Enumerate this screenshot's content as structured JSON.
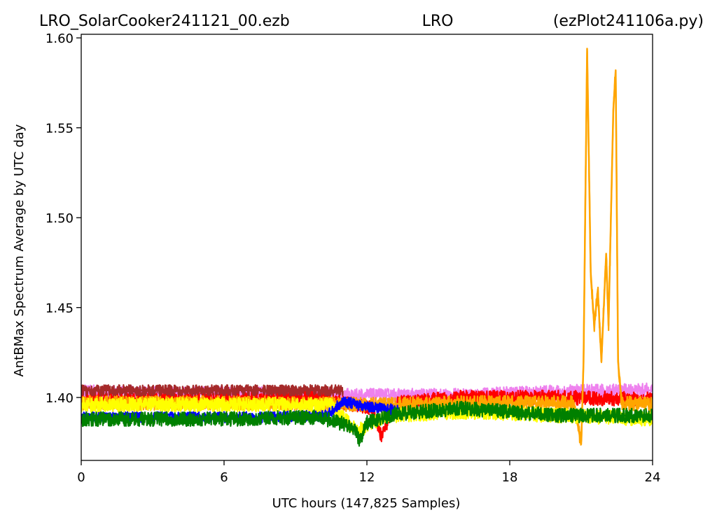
{
  "chart_data": {
    "type": "line",
    "title_left": "LRO_SolarCooker241121_00.ezb",
    "title_center": "LRO",
    "title_right": "(ezPlot241106a.py)",
    "xlabel": "UTC hours  (147,825 Samples)",
    "ylabel": "AntBMax Spectrum Average by UTC day",
    "xlim": [
      0,
      24
    ],
    "ylim": [
      1.365,
      1.602
    ],
    "x_ticks": [
      0,
      6,
      12,
      18,
      24
    ],
    "x_tick_labels": [
      "0",
      "6",
      "12",
      "18",
      "24"
    ],
    "y_ticks": [
      1.4,
      1.45,
      1.5,
      1.55,
      1.6
    ],
    "y_tick_labels": [
      "1.40",
      "1.45",
      "1.50",
      "1.55",
      "1.60"
    ],
    "grid": false,
    "legend": "none",
    "series": [
      {
        "color": "#ee82ee",
        "points": [
          [
            0,
            1.403
          ],
          [
            4,
            1.402
          ],
          [
            8,
            1.402
          ],
          [
            12,
            1.401
          ],
          [
            16,
            1.401
          ],
          [
            20,
            1.403
          ],
          [
            24,
            1.404
          ]
        ],
        "noise": 0.004
      },
      {
        "color": "#ff0000",
        "points": [
          [
            0,
            1.399
          ],
          [
            6,
            1.399
          ],
          [
            10,
            1.4
          ],
          [
            12.2,
            1.394
          ],
          [
            12.6,
            1.379
          ],
          [
            13.3,
            1.397
          ],
          [
            16,
            1.4
          ],
          [
            20,
            1.4
          ],
          [
            24,
            1.399
          ]
        ],
        "noise": 0.004
      },
      {
        "color": "#ffa500",
        "points": [
          [
            0,
            1.397
          ],
          [
            6,
            1.397
          ],
          [
            12,
            1.396
          ],
          [
            16,
            1.397
          ],
          [
            20.7,
            1.397
          ],
          [
            21.0,
            1.374
          ],
          [
            21.1,
            1.42
          ],
          [
            21.25,
            1.594
          ],
          [
            21.4,
            1.47
          ],
          [
            21.55,
            1.44
          ],
          [
            21.7,
            1.46
          ],
          [
            21.85,
            1.42
          ],
          [
            22.05,
            1.48
          ],
          [
            22.15,
            1.44
          ],
          [
            22.25,
            1.5
          ],
          [
            22.35,
            1.56
          ],
          [
            22.45,
            1.582
          ],
          [
            22.55,
            1.42
          ],
          [
            22.7,
            1.397
          ],
          [
            24,
            1.396
          ]
        ],
        "noise": 0.004
      },
      {
        "color": "#ffff00",
        "points": [
          [
            0,
            1.396
          ],
          [
            6,
            1.396
          ],
          [
            10.5,
            1.396
          ],
          [
            11.0,
            1.389
          ],
          [
            11.6,
            1.381
          ],
          [
            12.2,
            1.386
          ],
          [
            13,
            1.39
          ],
          [
            16,
            1.392
          ],
          [
            20,
            1.39
          ],
          [
            24,
            1.388
          ]
        ],
        "noise": 0.004
      },
      {
        "color": "#a52a2a",
        "points": [
          [
            0,
            1.404
          ],
          [
            4,
            1.404
          ],
          [
            8,
            1.404
          ],
          [
            11,
            1.404
          ]
        ],
        "noise": 0.003
      },
      {
        "color": "#0000ff",
        "points": [
          [
            0,
            1.389
          ],
          [
            4,
            1.389
          ],
          [
            8,
            1.389
          ],
          [
            10.3,
            1.39
          ],
          [
            11.0,
            1.398
          ],
          [
            11.8,
            1.395
          ],
          [
            13.3,
            1.393
          ]
        ],
        "noise": 0.003
      },
      {
        "color": "#008000",
        "points": [
          [
            0,
            1.388
          ],
          [
            6,
            1.388
          ],
          [
            10,
            1.389
          ],
          [
            11.4,
            1.384
          ],
          [
            11.7,
            1.376
          ],
          [
            12.0,
            1.386
          ],
          [
            13.3,
            1.391
          ],
          [
            16,
            1.394
          ],
          [
            20,
            1.39
          ],
          [
            24,
            1.39
          ]
        ],
        "noise": 0.004
      }
    ]
  }
}
